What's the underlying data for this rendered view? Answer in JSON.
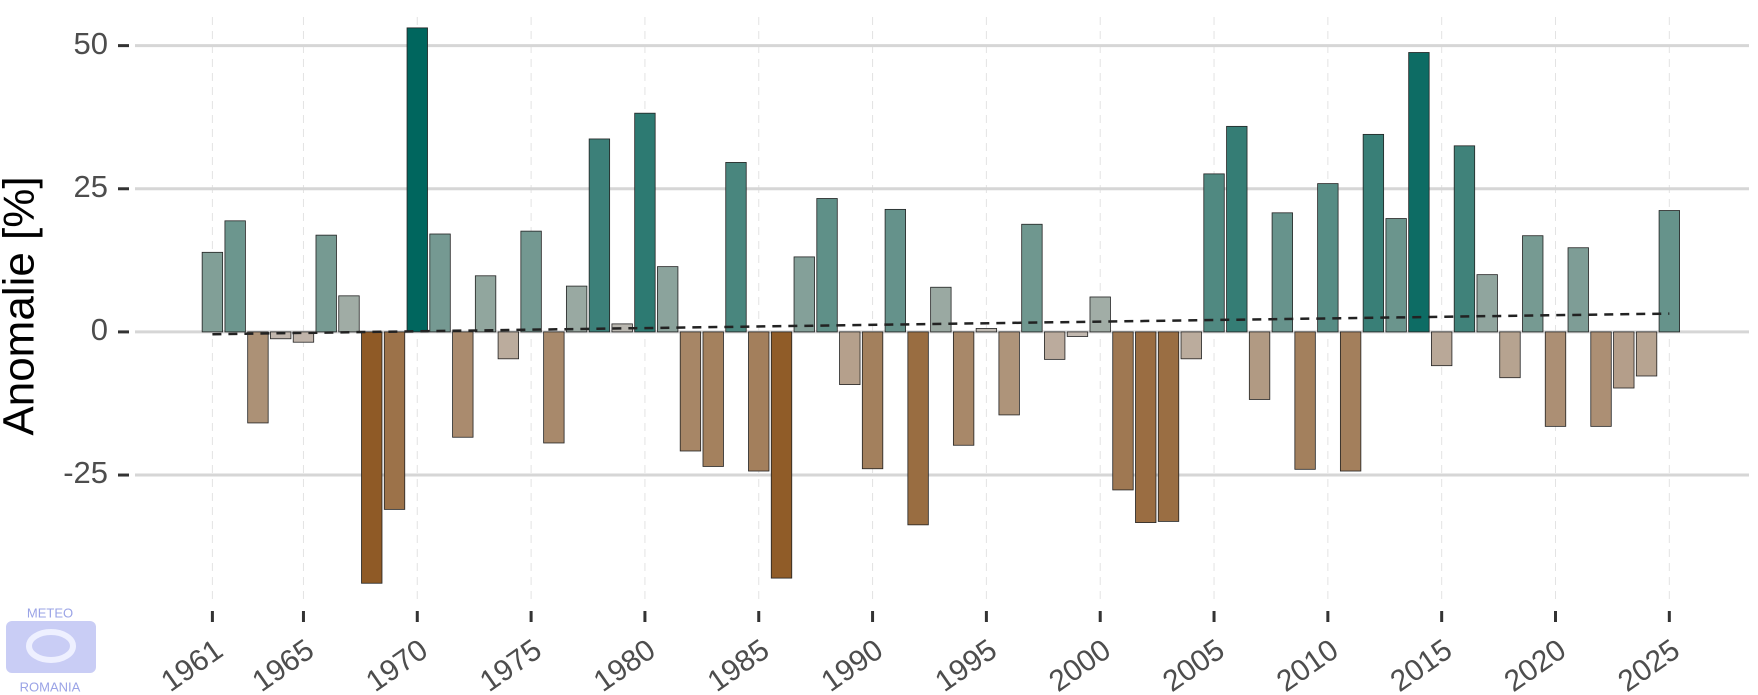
{
  "chart_data": {
    "type": "bar",
    "y_label": "Anomalie [%]",
    "x": [
      1961,
      1962,
      1963,
      1964,
      1965,
      1966,
      1967,
      1968,
      1969,
      1970,
      1971,
      1972,
      1973,
      1974,
      1975,
      1976,
      1977,
      1978,
      1979,
      1980,
      1981,
      1982,
      1983,
      1984,
      1985,
      1986,
      1987,
      1988,
      1989,
      1990,
      1991,
      1992,
      1993,
      1994,
      1995,
      1996,
      1997,
      1998,
      1999,
      2000,
      2001,
      2002,
      2003,
      2004,
      2005,
      2006,
      2007,
      2008,
      2009,
      2010,
      2011,
      2012,
      2013,
      2014,
      2015,
      2016,
      2017,
      2018,
      2019,
      2020,
      2021,
      2022,
      2023,
      2024,
      2025
    ],
    "values": [
      13.9,
      19.4,
      -15.9,
      -1.2,
      -1.8,
      16.9,
      6.3,
      -43.9,
      -31.0,
      53.1,
      17.1,
      -18.4,
      9.8,
      -4.7,
      17.6,
      -19.4,
      8.0,
      33.7,
      1.4,
      38.2,
      11.4,
      -20.8,
      -23.5,
      29.6,
      -24.3,
      -43.0,
      13.1,
      23.3,
      -9.2,
      -23.9,
      21.4,
      -33.7,
      7.8,
      -19.8,
      0.6,
      -14.5,
      18.8,
      -4.8,
      -0.8,
      6.1,
      -27.6,
      -33.3,
      -33.1,
      -4.7,
      27.6,
      35.9,
      -11.8,
      20.8,
      -24.0,
      25.9,
      -24.3,
      34.5,
      19.8,
      48.8,
      -5.9,
      32.5,
      10.0,
      -8.0,
      16.8,
      -16.5,
      14.7,
      -16.5,
      -9.8,
      -7.7,
      21.2
    ],
    "colors": {
      "negative": "#8f5a26",
      "zero": "#c4bcb5",
      "positive": "#00665e"
    },
    "trend": {
      "x": [
        1961,
        2025
      ],
      "values": [
        -0.4,
        3.2
      ],
      "color": "#222222"
    },
    "xlim": [
      1957.6,
      2028.5
    ],
    "xticks": [
      1961,
      1965,
      1970,
      1975,
      1980,
      1985,
      1990,
      1995,
      2000,
      2005,
      2010,
      2015,
      2020,
      2025
    ],
    "ylim": [
      -47,
      55
    ],
    "yticks": [
      -25,
      0,
      25,
      50
    ],
    "grid": true,
    "logo": {
      "top": "METEO",
      "bottom": "ROMANIA"
    }
  }
}
